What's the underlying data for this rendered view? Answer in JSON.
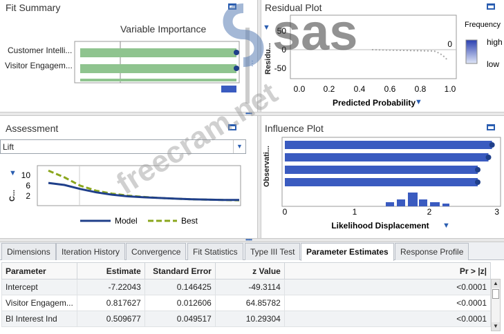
{
  "fit_summary": {
    "title": "Fit Summary",
    "chart_title": "Variable Importance",
    "variables": [
      "Customer Intelli...",
      "Visitor Engagem..."
    ]
  },
  "residual_plot": {
    "title": "Residual Plot",
    "ylabel": "Residu...",
    "xlabel": "Predicted Probability",
    "y_ticks": [
      "50",
      "0",
      "-50"
    ],
    "x_ticks": [
      "0.0",
      "0.2",
      "0.4",
      "0.6",
      "0.8",
      "1.0"
    ],
    "inner_label": "0",
    "legend_title": "Frequency",
    "legend_high": "high",
    "legend_low": "low"
  },
  "assessment": {
    "title": "Assessment",
    "selected": "Lift",
    "ylabel": "C...",
    "y_ticks": [
      "10",
      "6",
      "2"
    ],
    "legend_model": "Model",
    "legend_best": "Best"
  },
  "influence_plot": {
    "title": "Influence Plot",
    "ylabel": "Observati...",
    "xlabel": "Likelihood Displacement",
    "x_ticks": [
      "0",
      "1",
      "2",
      "3"
    ]
  },
  "tabs": [
    "Dimensions",
    "Iteration History",
    "Convergence",
    "Fit Statistics",
    "Type III Test",
    "Parameter Estimates",
    "Response Profile"
  ],
  "active_tab": "Parameter Estimates",
  "table": {
    "columns": [
      "Parameter",
      "Estimate",
      "Standard Error",
      "z Value",
      "Pr > |z|"
    ],
    "rows": [
      [
        "Intercept",
        "-7.22043",
        "0.146425",
        "-49.3114",
        "<0.0001"
      ],
      [
        "Visitor Engagem...",
        "0.817627",
        "0.012606",
        "64.85782",
        "<0.0001"
      ],
      [
        "BI Interest Ind",
        "0.509677",
        "0.049517",
        "10.29304",
        "<0.0001"
      ]
    ]
  },
  "watermark": {
    "brand": "sas",
    "site": "freecram.net"
  },
  "colors": {
    "accent": "#2a5db0",
    "bar_green": "#8fc48f",
    "bar_blue": "#3a5bc0",
    "best_line": "#8aa61c",
    "model_line": "#1f3f8a"
  },
  "chart_data": [
    {
      "type": "bar",
      "title": "Variable Importance",
      "categories": [
        "Customer Intelli...",
        "Visitor Engagem..."
      ],
      "values": [
        1.0,
        1.0
      ]
    },
    {
      "type": "line",
      "title": "",
      "ylabel": "C...",
      "ylim": [
        0,
        12
      ],
      "series": [
        {
          "name": "Model",
          "values": [
            6.8,
            6.2,
            5.0,
            4.0,
            3.3,
            2.8,
            2.5,
            2.3,
            2.1,
            1.9,
            1.8,
            1.7,
            1.7
          ]
        },
        {
          "name": "Best",
          "values": [
            10.5,
            8.5,
            6.0,
            4.5,
            3.6,
            3.0,
            2.6,
            2.3,
            2.1,
            1.9,
            1.8,
            1.7,
            1.6
          ]
        }
      ]
    },
    {
      "type": "bar",
      "title": "",
      "xlabel": "Likelihood Displacement",
      "xlim": [
        0,
        3
      ],
      "values": [
        2.9,
        2.85,
        2.7,
        2.7
      ]
    }
  ]
}
